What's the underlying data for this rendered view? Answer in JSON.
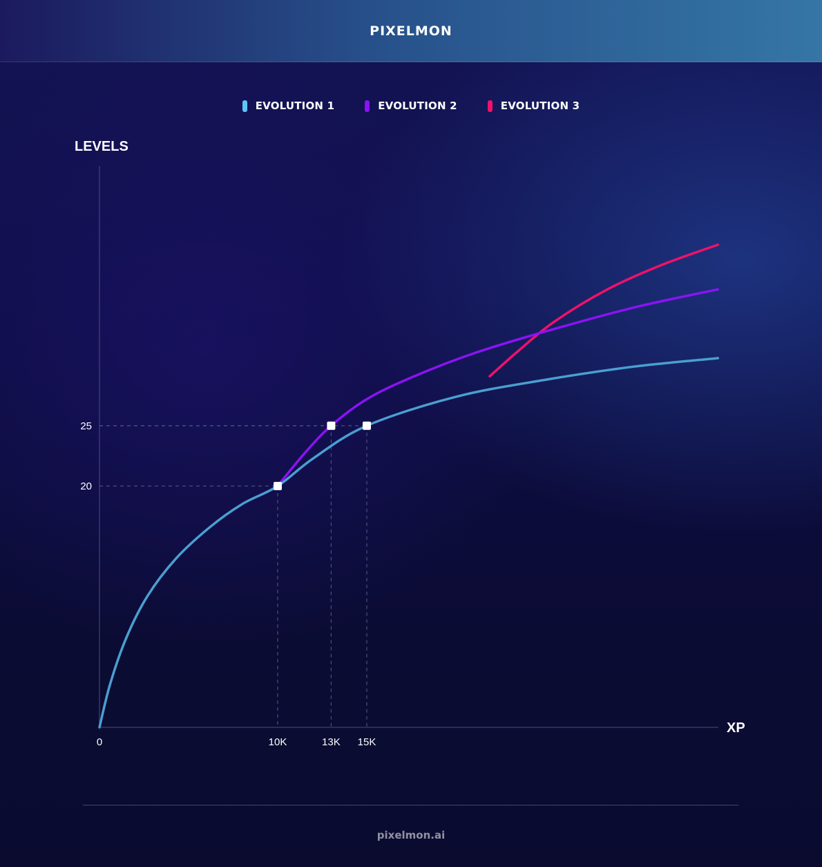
{
  "header": {
    "brand": "PIXELMON"
  },
  "footer": {
    "site": "pixelmon.ai"
  },
  "colors": {
    "evolution1": "#4a9fd0",
    "evolution2": "#8a13f2",
    "evolution3": "#f0116a",
    "swatch1": "#5ec4f5",
    "gridline": "#4b4f80",
    "axis": "#4b4f80"
  },
  "chart_data": {
    "type": "line",
    "ylabel": "LEVELS",
    "xlabel": "XP",
    "x_ticks": [
      {
        "value": 0,
        "label": "0"
      },
      {
        "value": 10000,
        "label": "10K"
      },
      {
        "value": 13000,
        "label": "13K"
      },
      {
        "value": 15000,
        "label": "15K"
      }
    ],
    "y_ticks": [
      {
        "value": 20,
        "label": "20"
      },
      {
        "value": 25,
        "label": "25"
      }
    ],
    "xlim": [
      0,
      34700
    ],
    "ylim": [
      0,
      45
    ],
    "grid": "dashed reference lines at marked points only",
    "legend_position": "top-center",
    "markers": [
      {
        "x": 10000,
        "y": 20
      },
      {
        "x": 13000,
        "y": 25
      },
      {
        "x": 15000,
        "y": 25
      }
    ],
    "series": [
      {
        "name": "EVOLUTION 1",
        "points": [
          [
            0,
            0
          ],
          [
            600,
            3.6
          ],
          [
            1500,
            7.4
          ],
          [
            2700,
            10.9
          ],
          [
            4300,
            14
          ],
          [
            6200,
            16.6
          ],
          [
            8000,
            18.5
          ],
          [
            10000,
            20
          ],
          [
            12000,
            22.3
          ],
          [
            15000,
            25
          ],
          [
            20000,
            27.4
          ],
          [
            25000,
            28.8
          ],
          [
            30000,
            29.9
          ],
          [
            34700,
            30.6
          ]
        ]
      },
      {
        "name": "EVOLUTION 2",
        "points": [
          [
            10000,
            20
          ],
          [
            11500,
            22.7
          ],
          [
            13000,
            25
          ],
          [
            15000,
            27.2
          ],
          [
            17500,
            29
          ],
          [
            21000,
            31
          ],
          [
            25000,
            32.8
          ],
          [
            30000,
            34.8
          ],
          [
            34700,
            36.3
          ]
        ]
      },
      {
        "name": "EVOLUTION 3",
        "points": [
          [
            21900,
            29.1
          ],
          [
            23500,
            31.2
          ],
          [
            25500,
            33.6
          ],
          [
            28500,
            36.3
          ],
          [
            31500,
            38.3
          ],
          [
            34700,
            40
          ]
        ]
      }
    ]
  }
}
